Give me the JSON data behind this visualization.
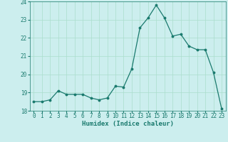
{
  "x": [
    0,
    1,
    2,
    3,
    4,
    5,
    6,
    7,
    8,
    9,
    10,
    11,
    12,
    13,
    14,
    15,
    16,
    17,
    18,
    19,
    20,
    21,
    22,
    23
  ],
  "y": [
    18.5,
    18.5,
    18.6,
    19.1,
    18.9,
    18.9,
    18.9,
    18.7,
    18.6,
    18.7,
    19.35,
    19.3,
    20.3,
    22.55,
    23.1,
    23.8,
    23.1,
    22.1,
    22.2,
    21.55,
    21.35,
    21.35,
    20.1,
    18.1
  ],
  "xlabel": "Humidex (Indice chaleur)",
  "xlim": [
    -0.5,
    23.5
  ],
  "ylim": [
    18,
    24
  ],
  "yticks": [
    18,
    19,
    20,
    21,
    22,
    23,
    24
  ],
  "xticks": [
    0,
    1,
    2,
    3,
    4,
    5,
    6,
    7,
    8,
    9,
    10,
    11,
    12,
    13,
    14,
    15,
    16,
    17,
    18,
    19,
    20,
    21,
    22,
    23
  ],
  "line_color": "#1a7a6e",
  "marker": "o",
  "marker_size": 1.8,
  "line_width": 0.9,
  "bg_color": "#cceeee",
  "grid_color": "#aaddcc",
  "axis_color": "#1a7a6e",
  "tick_color": "#1a7a6e",
  "label_color": "#1a7a6e",
  "xlabel_fontsize": 6.5,
  "tick_fontsize": 5.5
}
